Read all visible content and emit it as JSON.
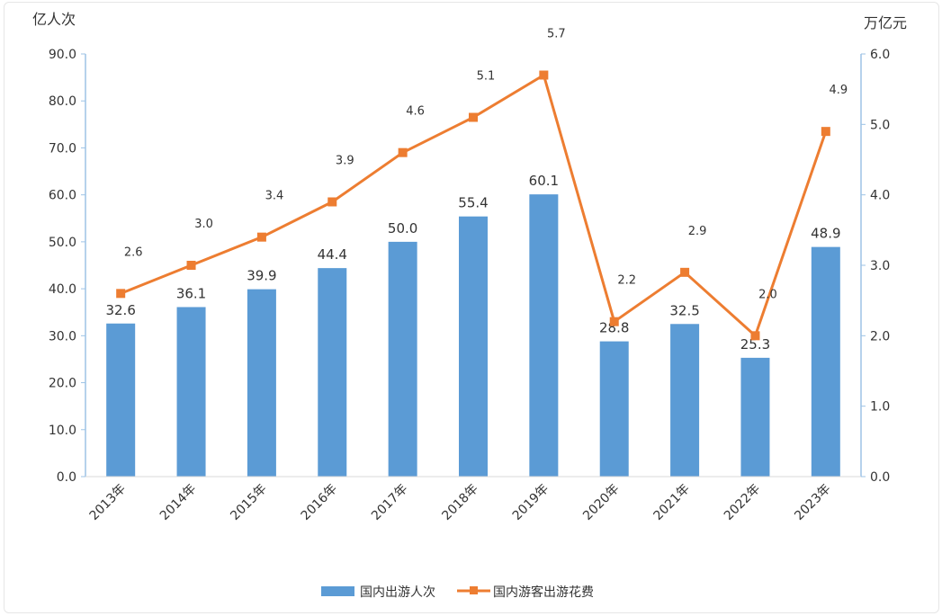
{
  "chart_data": {
    "type": "bar",
    "categories": [
      "2013年",
      "2014年",
      "2015年",
      "2016年",
      "2017年",
      "2018年",
      "2019年",
      "2020年",
      "2021年",
      "2022年",
      "2023年"
    ],
    "series": [
      {
        "name": "国内出游人次",
        "type": "bar",
        "axis": "left",
        "color": "#5b9bd5",
        "values": [
          32.6,
          36.1,
          39.9,
          44.4,
          50.0,
          55.4,
          60.1,
          28.8,
          32.5,
          25.3,
          48.9
        ],
        "labels": [
          "32.6",
          "36.1",
          "39.9",
          "44.4",
          "50.0",
          "55.4",
          "60.1",
          "28.8",
          "32.5",
          "25.3",
          "48.9"
        ]
      },
      {
        "name": "国内游客出游花费",
        "type": "line",
        "axis": "right",
        "color": "#ed7d31",
        "values": [
          2.6,
          3.0,
          3.4,
          3.9,
          4.6,
          5.1,
          5.7,
          2.2,
          2.9,
          2.0,
          4.9
        ],
        "labels": [
          "2.6",
          "3.0",
          "3.4",
          "3.9",
          "4.6",
          "5.1",
          "5.7",
          "2.2",
          "2.9",
          "2.0",
          "4.9"
        ]
      }
    ],
    "left_axis": {
      "unit": "亿人次",
      "ylim": [
        0,
        90
      ],
      "ticks": [
        "0.0",
        "10.0",
        "20.0",
        "30.0",
        "40.0",
        "50.0",
        "60.0",
        "70.0",
        "80.0",
        "90.0"
      ]
    },
    "right_axis": {
      "unit": "万亿元",
      "ylim": [
        0,
        6
      ],
      "ticks": [
        "0.0",
        "1.0",
        "2.0",
        "3.0",
        "4.0",
        "5.0",
        "6.0"
      ]
    },
    "legend": "bottom",
    "grid": false
  }
}
